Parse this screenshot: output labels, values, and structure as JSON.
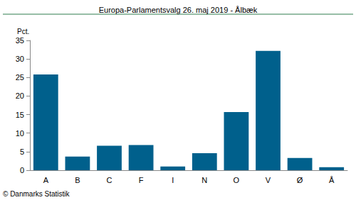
{
  "chart_data": {
    "type": "bar",
    "title": "Europa-Parlamentsvalg 26. maj 2019 - Ålbæk",
    "y_label": "Pct.",
    "categories": [
      "A",
      "B",
      "C",
      "F",
      "I",
      "N",
      "O",
      "V",
      "Ø",
      "Å"
    ],
    "values": [
      25.8,
      3.7,
      6.6,
      6.8,
      1.0,
      4.6,
      15.7,
      32.2,
      3.3,
      0.8
    ],
    "color": "#00608c",
    "ylim": [
      0,
      35
    ],
    "yticks": [
      0,
      5,
      10,
      15,
      20,
      25,
      30,
      35
    ],
    "grid": false,
    "annotations": [
      "© Danmarks Statistik"
    ]
  }
}
